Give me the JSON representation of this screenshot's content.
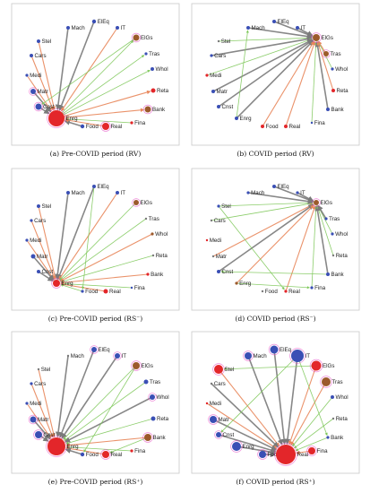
{
  "colors": {
    "blue": "#3a4fb5",
    "red": "#e3262a",
    "brown": "#9c5a2c",
    "gray": "#7a7a7a",
    "green": "#7ec85a",
    "orange": "#e8865a",
    "magenta": "#e23ac0",
    "panel_border": "#c9c9c9"
  },
  "panels": [
    {
      "caption": "(a) Pre-COVID period (RV)",
      "nodes": [
        {
          "name": "Stel",
          "color": "blue",
          "size": 2
        },
        {
          "name": "Mach",
          "color": "blue",
          "size": 2
        },
        {
          "name": "ElEq",
          "color": "blue",
          "size": 2.2
        },
        {
          "name": "IT",
          "color": "blue",
          "size": 2
        },
        {
          "name": "ElGs",
          "color": "brown",
          "size": 3.5
        },
        {
          "name": "Cars",
          "color": "blue",
          "size": 2
        },
        {
          "name": "Tras",
          "color": "blue",
          "size": 1.6
        },
        {
          "name": "Medi",
          "color": "blue",
          "size": 1.6
        },
        {
          "name": "Whol",
          "color": "blue",
          "size": 2
        },
        {
          "name": "Matr",
          "color": "blue",
          "size": 3
        },
        {
          "name": "Reta",
          "color": "red",
          "size": 2.5
        },
        {
          "name": "Cnst",
          "color": "blue",
          "size": 3.5
        },
        {
          "name": "Bank",
          "color": "brown",
          "size": 3.5
        },
        {
          "name": "Fina",
          "color": "red",
          "size": 1.6
        },
        {
          "name": "Enrg",
          "color": "red",
          "size": 9
        },
        {
          "name": "Food",
          "color": "blue",
          "size": 2.2
        },
        {
          "name": "Real",
          "color": "red",
          "size": 4
        }
      ],
      "edges": [
        [
          "Stel",
          "Enrg",
          "orange"
        ],
        [
          "Cars",
          "Enrg",
          "orange"
        ],
        [
          "Medi",
          "Enrg",
          "orange"
        ],
        [
          "Matr",
          "Enrg",
          "gray"
        ],
        [
          "Mach",
          "Enrg",
          "gray"
        ],
        [
          "ElEq",
          "Enrg",
          "gray"
        ],
        [
          "IT",
          "Enrg",
          "orange"
        ],
        [
          "Enrg",
          "ElGs",
          "green"
        ],
        [
          "Enrg",
          "Tras",
          "green"
        ],
        [
          "Enrg",
          "Whol",
          "green"
        ],
        [
          "Enrg",
          "Reta",
          "orange"
        ],
        [
          "Enrg",
          "Bank",
          "orange"
        ],
        [
          "Fina",
          "Enrg",
          "green"
        ],
        [
          "Food",
          "Enrg",
          "gray"
        ],
        [
          "Real",
          "Enrg",
          "orange"
        ],
        [
          "ElGs",
          "Cnst",
          "green"
        ],
        [
          "Cnst",
          "Enrg",
          "gray"
        ]
      ]
    },
    {
      "caption": "(b) COVID period (RV)",
      "nodes": [
        {
          "name": "Stel",
          "color": "gray",
          "size": 1.2
        },
        {
          "name": "Mach",
          "color": "blue",
          "size": 2
        },
        {
          "name": "ElEq",
          "color": "blue",
          "size": 2
        },
        {
          "name": "IT",
          "color": "blue",
          "size": 2
        },
        {
          "name": "ElGs",
          "color": "brown",
          "size": 4
        },
        {
          "name": "Cars",
          "color": "blue",
          "size": 1.6
        },
        {
          "name": "Tras",
          "color": "brown",
          "size": 3
        },
        {
          "name": "Medi",
          "color": "red",
          "size": 1.6
        },
        {
          "name": "Whol",
          "color": "blue",
          "size": 1.6
        },
        {
          "name": "Matr",
          "color": "blue",
          "size": 2
        },
        {
          "name": "Reta",
          "color": "red",
          "size": 2
        },
        {
          "name": "Cnst",
          "color": "blue",
          "size": 2
        },
        {
          "name": "Bank",
          "color": "blue",
          "size": 2
        },
        {
          "name": "Enrg",
          "color": "blue",
          "size": 2
        },
        {
          "name": "Food",
          "color": "red",
          "size": 2
        },
        {
          "name": "Real",
          "color": "red",
          "size": 2
        },
        {
          "name": "Fina",
          "color": "blue",
          "size": 1.2
        }
      ],
      "edges": [
        [
          "Stel",
          "ElGs",
          "green"
        ],
        [
          "Cars",
          "ElGs",
          "gray"
        ],
        [
          "Medi",
          "ElGs",
          "green"
        ],
        [
          "Matr",
          "ElGs",
          "gray"
        ],
        [
          "Cnst",
          "ElGs",
          "gray"
        ],
        [
          "Enrg",
          "ElGs",
          "gray"
        ],
        [
          "Food",
          "ElGs",
          "orange"
        ],
        [
          "Real",
          "ElGs",
          "orange"
        ],
        [
          "Fina",
          "ElGs",
          "green"
        ],
        [
          "Bank",
          "ElGs",
          "gray"
        ],
        [
          "Reta",
          "ElGs",
          "orange"
        ],
        [
          "Whol",
          "ElGs",
          "green"
        ],
        [
          "Tras",
          "ElGs",
          "orange"
        ],
        [
          "Mach",
          "ElGs",
          "gray"
        ],
        [
          "ElEq",
          "ElGs",
          "gray"
        ],
        [
          "IT",
          "ElGs",
          "gray"
        ],
        [
          "Enrg",
          "Mach",
          "green"
        ]
      ]
    },
    {
      "caption": "(c) Pre-COVID period (RS⁻)",
      "nodes": [
        {
          "name": "Stel",
          "color": "blue",
          "size": 2
        },
        {
          "name": "Mach",
          "color": "blue",
          "size": 2
        },
        {
          "name": "ElEq",
          "color": "blue",
          "size": 2
        },
        {
          "name": "IT",
          "color": "blue",
          "size": 2
        },
        {
          "name": "ElGs",
          "color": "brown",
          "size": 3
        },
        {
          "name": "Cars",
          "color": "blue",
          "size": 1.6
        },
        {
          "name": "Tras",
          "color": "gray",
          "size": 1.2
        },
        {
          "name": "Medi",
          "color": "blue",
          "size": 1.6
        },
        {
          "name": "Whol",
          "color": "brown",
          "size": 1.6
        },
        {
          "name": "Matr",
          "color": "blue",
          "size": 2.5
        },
        {
          "name": "Reta",
          "color": "gray",
          "size": 1.2
        },
        {
          "name": "Cnst",
          "color": "blue",
          "size": 2
        },
        {
          "name": "Bank",
          "color": "red",
          "size": 1.6
        },
        {
          "name": "Enrg",
          "color": "red",
          "size": 4
        },
        {
          "name": "Food",
          "color": "blue",
          "size": 1.6
        },
        {
          "name": "Real",
          "color": "red",
          "size": 2.5
        },
        {
          "name": "Fina",
          "color": "blue",
          "size": 1.2
        }
      ],
      "edges": [
        [
          "Stel",
          "Enrg",
          "orange"
        ],
        [
          "Cars",
          "Enrg",
          "orange"
        ],
        [
          "Medi",
          "Enrg",
          "orange"
        ],
        [
          "Matr",
          "Enrg",
          "gray"
        ],
        [
          "Mach",
          "Enrg",
          "gray"
        ],
        [
          "ElEq",
          "Enrg",
          "gray"
        ],
        [
          "IT",
          "Enrg",
          "orange"
        ],
        [
          "ElGs",
          "Enrg",
          "green"
        ],
        [
          "Tras",
          "Enrg",
          "green"
        ],
        [
          "Whol",
          "Enrg",
          "orange"
        ],
        [
          "Reta",
          "Enrg",
          "green"
        ],
        [
          "Bank",
          "Enrg",
          "orange"
        ],
        [
          "Fina",
          "Enrg",
          "green"
        ],
        [
          "Real",
          "Enrg",
          "orange"
        ],
        [
          "Food",
          "Enrg",
          "green"
        ],
        [
          "Cnst",
          "Enrg",
          "gray"
        ],
        [
          "ElEq",
          "Food",
          "green"
        ]
      ]
    },
    {
      "caption": "(d) COVID period (RS⁻)",
      "nodes": [
        {
          "name": "Stel",
          "color": "blue",
          "size": 1.6
        },
        {
          "name": "Mach",
          "color": "blue",
          "size": 1.6
        },
        {
          "name": "ElEq",
          "color": "blue",
          "size": 2
        },
        {
          "name": "IT",
          "color": "blue",
          "size": 1.6
        },
        {
          "name": "ElGs",
          "color": "brown",
          "size": 3
        },
        {
          "name": "Cars",
          "color": "gray",
          "size": 1.2
        },
        {
          "name": "Tras",
          "color": "blue",
          "size": 1.6
        },
        {
          "name": "Medi",
          "color": "red",
          "size": 1.2
        },
        {
          "name": "Whol",
          "color": "blue",
          "size": 1.6
        },
        {
          "name": "Matr",
          "color": "gray",
          "size": 1.2
        },
        {
          "name": "Reta",
          "color": "gray",
          "size": 1.2
        },
        {
          "name": "Cnst",
          "color": "blue",
          "size": 2
        },
        {
          "name": "Bank",
          "color": "blue",
          "size": 2
        },
        {
          "name": "Enrg",
          "color": "brown",
          "size": 1.6
        },
        {
          "name": "Food",
          "color": "gray",
          "size": 1.2
        },
        {
          "name": "Real",
          "color": "red",
          "size": 1.6
        },
        {
          "name": "Fina",
          "color": "blue",
          "size": 1.6
        }
      ],
      "edges": [
        [
          "Stel",
          "ElGs",
          "green"
        ],
        [
          "Cars",
          "ElGs",
          "green"
        ],
        [
          "Matr",
          "ElGs",
          "orange"
        ],
        [
          "Cnst",
          "ElGs",
          "gray"
        ],
        [
          "Enrg",
          "ElGs",
          "orange"
        ],
        [
          "Real",
          "ElGs",
          "orange"
        ],
        [
          "Fina",
          "ElGs",
          "green"
        ],
        [
          "Bank",
          "ElGs",
          "gray"
        ],
        [
          "Reta",
          "ElGs",
          "green"
        ],
        [
          "Whol",
          "ElGs",
          "green"
        ],
        [
          "Tras",
          "ElGs",
          "gray"
        ],
        [
          "Mach",
          "ElGs",
          "gray"
        ],
        [
          "ElEq",
          "ElGs",
          "gray"
        ],
        [
          "IT",
          "ElGs",
          "gray"
        ],
        [
          "Bank",
          "Cnst",
          "green"
        ],
        [
          "Stel",
          "Real",
          "green"
        ],
        [
          "Enrg",
          "Fina",
          "green"
        ]
      ]
    },
    {
      "caption": "(e) Pre-COVID period (RS⁺)",
      "nodes": [
        {
          "name": "Stel",
          "color": "gray",
          "size": 1.2
        },
        {
          "name": "Mach",
          "color": "gray",
          "size": 1.2
        },
        {
          "name": "ElEq",
          "color": "blue",
          "size": 3
        },
        {
          "name": "IT",
          "color": "blue",
          "size": 3
        },
        {
          "name": "ElGs",
          "color": "brown",
          "size": 4
        },
        {
          "name": "Cars",
          "color": "blue",
          "size": 1.6
        },
        {
          "name": "Tras",
          "color": "blue",
          "size": 2.5
        },
        {
          "name": "Medi",
          "color": "blue",
          "size": 1.6
        },
        {
          "name": "Whol",
          "color": "blue",
          "size": 3
        },
        {
          "name": "Matr",
          "color": "blue",
          "size": 3.5
        },
        {
          "name": "Reta",
          "color": "blue",
          "size": 2.5
        },
        {
          "name": "Cnst",
          "color": "blue",
          "size": 4
        },
        {
          "name": "Bank",
          "color": "brown",
          "size": 4
        },
        {
          "name": "Enrg",
          "color": "red",
          "size": 10
        },
        {
          "name": "Food",
          "color": "blue",
          "size": 2.2
        },
        {
          "name": "Real",
          "color": "red",
          "size": 4
        },
        {
          "name": "Fina",
          "color": "red",
          "size": 1.6
        }
      ],
      "edges": [
        [
          "Stel",
          "Enrg",
          "orange"
        ],
        [
          "Cars",
          "Enrg",
          "orange"
        ],
        [
          "Medi",
          "Enrg",
          "orange"
        ],
        [
          "Matr",
          "Enrg",
          "gray"
        ],
        [
          "Mach",
          "Enrg",
          "gray"
        ],
        [
          "ElEq",
          "Enrg",
          "gray"
        ],
        [
          "IT",
          "Enrg",
          "gray"
        ],
        [
          "ElGs",
          "Enrg",
          "green"
        ],
        [
          "Tras",
          "Enrg",
          "green"
        ],
        [
          "Whol",
          "Enrg",
          "gray"
        ],
        [
          "Reta",
          "Enrg",
          "green"
        ],
        [
          "Bank",
          "Enrg",
          "orange"
        ],
        [
          "Fina",
          "Enrg",
          "green"
        ],
        [
          "Real",
          "Enrg",
          "orange"
        ],
        [
          "Food",
          "Enrg",
          "gray"
        ],
        [
          "Cnst",
          "Enrg",
          "gray"
        ],
        [
          "ElGs",
          "Food",
          "green"
        ],
        [
          "Bank",
          "Real",
          "green"
        ]
      ]
    },
    {
      "caption": "(f) COVID period (RS⁺)",
      "nodes": [
        {
          "name": "Stel",
          "color": "red",
          "size": 5
        },
        {
          "name": "Mach",
          "color": "blue",
          "size": 4
        },
        {
          "name": "ElEq",
          "color": "blue",
          "size": 4.5
        },
        {
          "name": "IT",
          "color": "blue",
          "size": 7
        },
        {
          "name": "ElGs",
          "color": "red",
          "size": 5.5
        },
        {
          "name": "Cars",
          "color": "gray",
          "size": 1.2
        },
        {
          "name": "Tras",
          "color": "brown",
          "size": 5
        },
        {
          "name": "Medi",
          "color": "red",
          "size": 1.2
        },
        {
          "name": "Whol",
          "color": "blue",
          "size": 2
        },
        {
          "name": "Matr",
          "color": "blue",
          "size": 4
        },
        {
          "name": "Reta",
          "color": "gray",
          "size": 1.2
        },
        {
          "name": "Cnst",
          "color": "blue",
          "size": 3
        },
        {
          "name": "Bank",
          "color": "blue",
          "size": 1.6
        },
        {
          "name": "Enrg",
          "color": "blue",
          "size": 5
        },
        {
          "name": "Food",
          "color": "blue",
          "size": 4
        },
        {
          "name": "Real",
          "color": "red",
          "size": 11
        },
        {
          "name": "Fina",
          "color": "red",
          "size": 4
        }
      ],
      "edges": [
        [
          "Stel",
          "Real",
          "orange"
        ],
        [
          "Cars",
          "Real",
          "gray"
        ],
        [
          "Medi",
          "Real",
          "orange"
        ],
        [
          "Matr",
          "Real",
          "gray"
        ],
        [
          "Mach",
          "Real",
          "gray"
        ],
        [
          "ElEq",
          "Real",
          "gray"
        ],
        [
          "IT",
          "Real",
          "gray"
        ],
        [
          "ElGs",
          "Real",
          "orange"
        ],
        [
          "Tras",
          "Real",
          "orange"
        ],
        [
          "Whol",
          "Real",
          "green"
        ],
        [
          "Reta",
          "Real",
          "green"
        ],
        [
          "Bank",
          "Real",
          "green"
        ],
        [
          "Fina",
          "Real",
          "orange"
        ],
        [
          "Cnst",
          "Real",
          "gray"
        ],
        [
          "Enrg",
          "Real",
          "gray"
        ],
        [
          "Food",
          "Real",
          "gray"
        ],
        [
          "ElGs",
          "Stel",
          "green"
        ],
        [
          "IT",
          "Cnst",
          "green"
        ],
        [
          "IT",
          "Bank",
          "green"
        ]
      ]
    }
  ]
}
